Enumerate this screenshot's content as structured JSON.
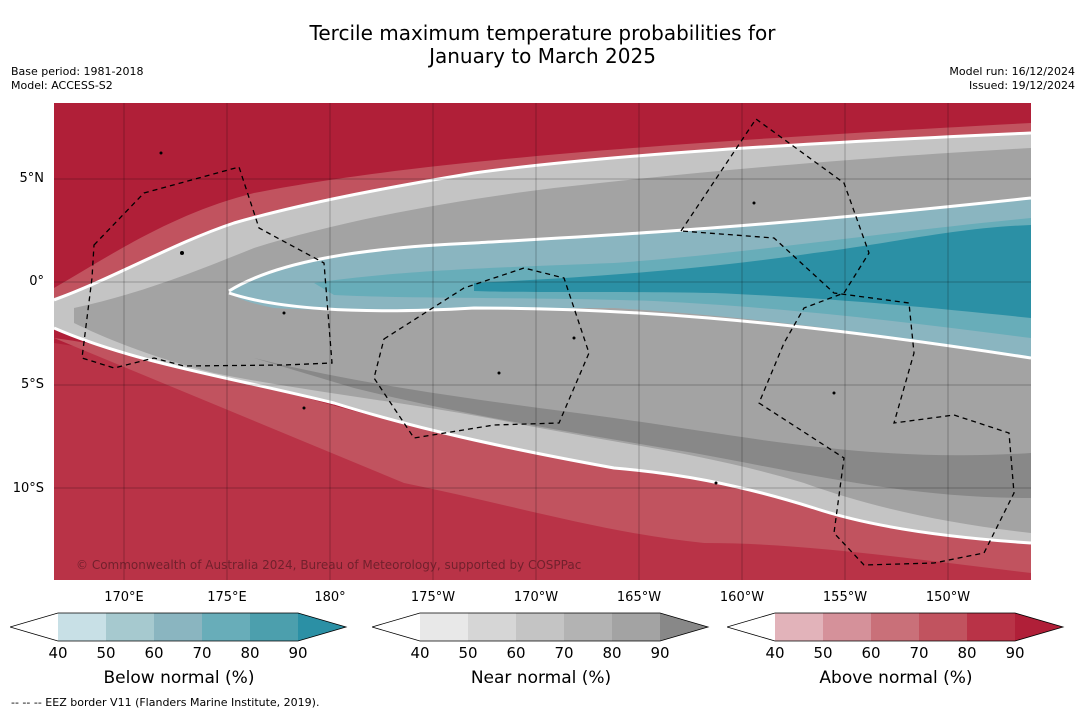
{
  "title_line1": "Tercile maximum temperature probabilities for",
  "title_line2": "January to March 2025",
  "base_period": "Base period: 1981-2018",
  "model": "Model: ACCESS-S2",
  "model_run": "Model run: 16/12/2024",
  "issued": "Issued: 19/12/2024",
  "latitudes": [
    "5°N",
    "0°",
    "5°S",
    "10°S"
  ],
  "longitudes": [
    "170°E",
    "175°E",
    "180°",
    "175°W",
    "170°W",
    "165°W",
    "160°W",
    "155°W",
    "150°W"
  ],
  "copyright": "© Commonwealth of Australia 2024, Bureau of Meteorology, supported by COSPPac",
  "colorbars": [
    {
      "title": "Below normal (%)",
      "ticks": [
        "40",
        "50",
        "60",
        "70",
        "80",
        "90"
      ],
      "colors": [
        "#ffffff",
        "#c8e0e6",
        "#a6c9cf",
        "#8ab5c0",
        "#68adb9",
        "#4c9fad",
        "#2b90a5"
      ]
    },
    {
      "title": "Near normal (%)",
      "ticks": [
        "40",
        "50",
        "60",
        "70",
        "80",
        "90"
      ],
      "colors": [
        "#ffffff",
        "#e8e8e8",
        "#d6d6d6",
        "#c4c4c4",
        "#b3b3b3",
        "#a3a3a3",
        "#888888"
      ]
    },
    {
      "title": "Above normal (%)",
      "ticks": [
        "40",
        "50",
        "60",
        "70",
        "80",
        "90"
      ],
      "colors": [
        "#ffffff",
        "#e2b3ba",
        "#d5919a",
        "#c97079",
        "#c1535f",
        "#b93347",
        "#b01f38"
      ]
    }
  ],
  "footnote": "-- -- -- EEZ border V11 (Flanders Marine Institute, 2019)."
}
